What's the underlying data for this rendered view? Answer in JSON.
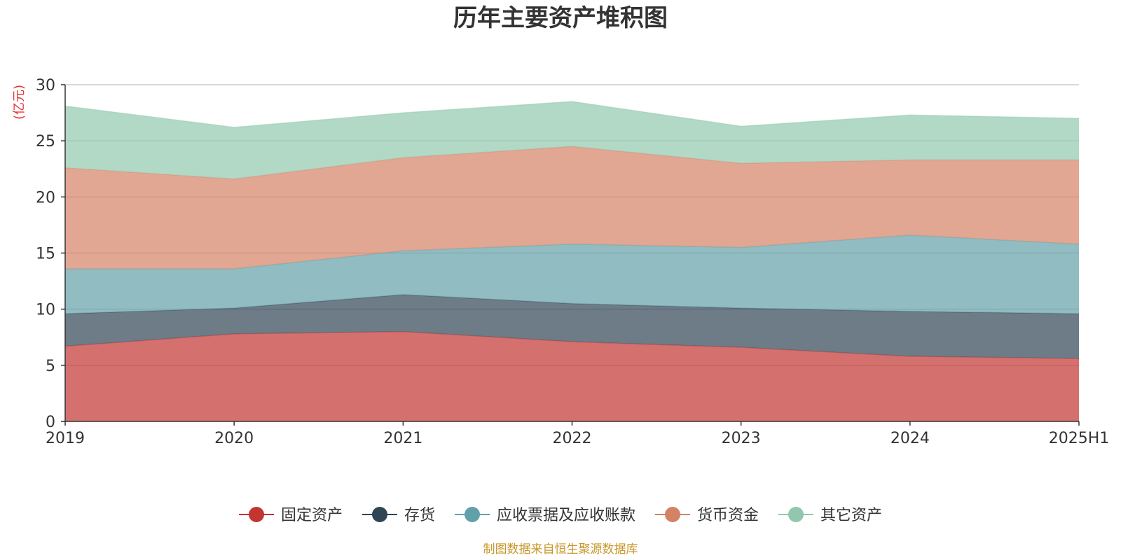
{
  "chart_data": {
    "type": "area",
    "stacked": true,
    "title": "历年主要资产堆积图",
    "unit_label": "亿元",
    "categories": [
      "2019",
      "2020",
      "2021",
      "2022",
      "2023",
      "2024",
      "2025H1"
    ],
    "ylim": [
      0,
      30
    ],
    "yticks": [
      0,
      5,
      10,
      15,
      20,
      25,
      30
    ],
    "grid": true,
    "legend_position": "bottom",
    "series": [
      {
        "name": "固定资产",
        "color": "#c23531",
        "values": [
          6.7,
          7.8,
          8.0,
          7.1,
          6.6,
          5.8,
          5.6
        ]
      },
      {
        "name": "存货",
        "color": "#2f4554",
        "values": [
          2.9,
          2.3,
          3.3,
          3.4,
          3.5,
          4.0,
          4.0
        ]
      },
      {
        "name": "应收票据及应收账款",
        "color": "#61a0a8",
        "values": [
          4.0,
          3.5,
          3.9,
          5.3,
          5.4,
          6.8,
          6.2
        ]
      },
      {
        "name": "货币资金",
        "color": "#d48265",
        "values": [
          9.0,
          8.0,
          8.3,
          8.7,
          7.5,
          6.7,
          7.5
        ]
      },
      {
        "name": "其它资产",
        "color": "#91c7ae",
        "values": [
          5.5,
          4.6,
          4.0,
          4.0,
          3.3,
          4.0,
          3.7
        ]
      }
    ],
    "source": "制图数据来自恒生聚源数据库"
  }
}
